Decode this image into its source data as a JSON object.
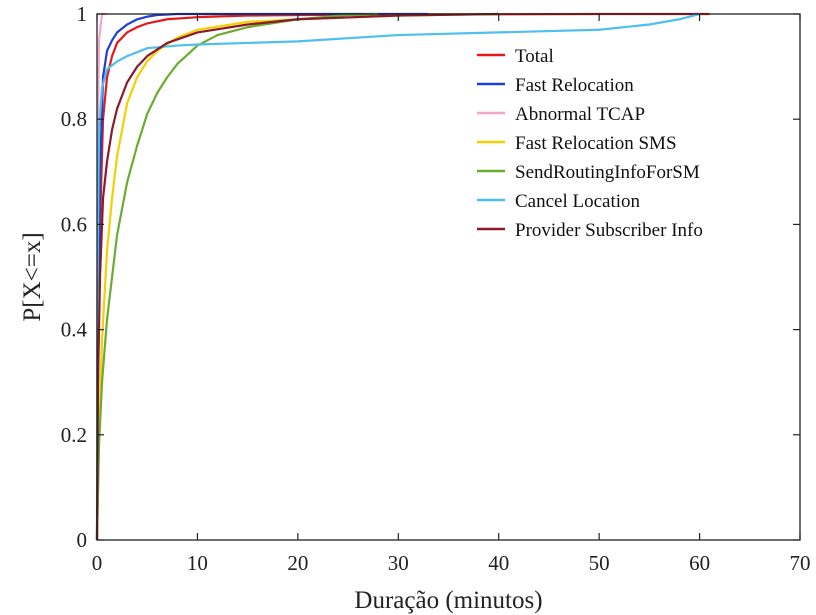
{
  "chart_data": {
    "type": "line",
    "title": "",
    "xlabel": "Duração (minutos)",
    "ylabel": "P[X<=x]",
    "xlim": [
      0,
      70
    ],
    "ylim": [
      0,
      1
    ],
    "xticks": [
      0,
      10,
      20,
      30,
      40,
      50,
      60,
      70
    ],
    "yticks": [
      0,
      0.2,
      0.4,
      0.6,
      0.8,
      1
    ],
    "ytick_labels": [
      "0",
      "0.2",
      "0.4",
      "0.6",
      "0.8",
      "1"
    ],
    "grid": false,
    "legend_position": "top-right",
    "series": [
      {
        "name": "Total",
        "color": "#e31a1c",
        "x": [
          0,
          0.1,
          0.3,
          0.6,
          1,
          1.5,
          2,
          3,
          4,
          5,
          7,
          10,
          15,
          20,
          30,
          40,
          50,
          61
        ],
        "y": [
          0,
          0.3,
          0.6,
          0.8,
          0.88,
          0.92,
          0.945,
          0.965,
          0.975,
          0.982,
          0.99,
          0.994,
          0.997,
          0.998,
          0.999,
          0.9995,
          1,
          1
        ]
      },
      {
        "name": "Fast Relocation",
        "color": "#1f3fd1",
        "x": [
          0,
          0.1,
          0.3,
          0.6,
          1,
          1.5,
          2,
          3,
          4,
          5,
          6,
          8,
          10,
          20,
          33
        ],
        "y": [
          0,
          0.4,
          0.7,
          0.88,
          0.93,
          0.95,
          0.965,
          0.98,
          0.99,
          0.995,
          0.998,
          1,
          1,
          1,
          1
        ]
      },
      {
        "name": "Abnormal TCAP",
        "color": "#f4a6c8",
        "x": [
          0,
          0.05,
          0.1,
          0.2,
          0.5,
          1
        ],
        "y": [
          0,
          0.5,
          0.8,
          0.95,
          1,
          1
        ]
      },
      {
        "name": "Fast Relocation SMS",
        "color": "#f5d000",
        "x": [
          0,
          0.2,
          0.5,
          1,
          1.5,
          2,
          3,
          4,
          5,
          6,
          8,
          10,
          15,
          20,
          30,
          40
        ],
        "y": [
          0,
          0.2,
          0.38,
          0.55,
          0.65,
          0.73,
          0.83,
          0.88,
          0.91,
          0.93,
          0.955,
          0.97,
          0.985,
          0.99,
          0.997,
          1
        ]
      },
      {
        "name": "SendRoutingInfoForSM",
        "color": "#6aab30",
        "x": [
          0,
          0.2,
          0.5,
          1,
          2,
          3,
          4,
          5,
          6,
          7,
          8,
          10,
          12,
          15,
          20,
          25,
          28
        ],
        "y": [
          0,
          0.18,
          0.3,
          0.42,
          0.58,
          0.68,
          0.75,
          0.81,
          0.85,
          0.88,
          0.905,
          0.94,
          0.96,
          0.975,
          0.99,
          0.998,
          1
        ]
      },
      {
        "name": "Cancel Location",
        "color": "#4fbfee",
        "x": [
          0,
          0.05,
          0.2,
          0.5,
          1,
          2,
          3,
          5,
          8,
          10,
          15,
          20,
          30,
          40,
          50,
          55,
          58,
          60
        ],
        "y": [
          0,
          0.5,
          0.78,
          0.86,
          0.895,
          0.91,
          0.92,
          0.935,
          0.94,
          0.942,
          0.945,
          0.948,
          0.96,
          0.965,
          0.97,
          0.98,
          0.99,
          1
        ]
      },
      {
        "name": "Provider Subscriber Info",
        "color": "#8b1a2b",
        "x": [
          0,
          0.1,
          0.3,
          0.6,
          1,
          1.5,
          2,
          3,
          4,
          5,
          7,
          10,
          15,
          20,
          30,
          40
        ],
        "y": [
          0,
          0.3,
          0.5,
          0.65,
          0.72,
          0.78,
          0.82,
          0.87,
          0.9,
          0.92,
          0.945,
          0.965,
          0.98,
          0.99,
          0.997,
          1
        ]
      }
    ]
  }
}
